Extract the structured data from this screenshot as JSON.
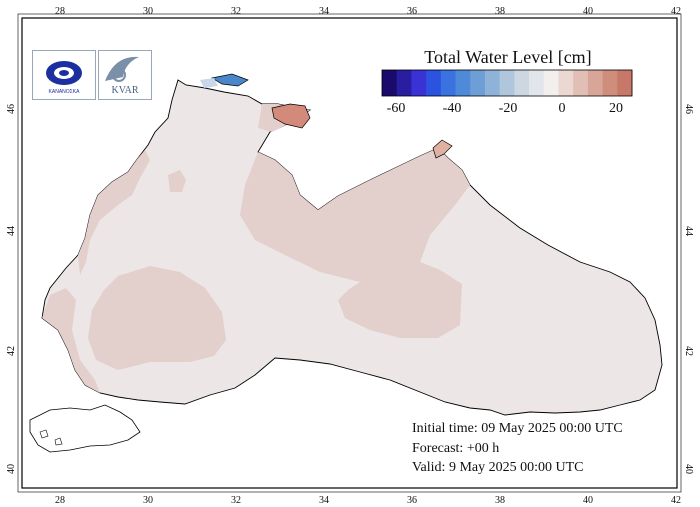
{
  "legend": {
    "title": "Total Water Level [cm]",
    "ticks": [
      "-60",
      "-40",
      "-20",
      "0",
      "20"
    ],
    "colors": [
      "#1a0a6b",
      "#2a1ea0",
      "#3a32d4",
      "#2c52e0",
      "#3a72e0",
      "#4f8ad8",
      "#6d9ed6",
      "#8fb3d8",
      "#b0c6dc",
      "#ccd7e2",
      "#e2e6ea",
      "#f2efee",
      "#ecd8d2",
      "#e2bfb5",
      "#d8a698",
      "#cf8e7c",
      "#c87868"
    ]
  },
  "info": {
    "initial": "Initial time: 09 May 2025 00:00 UTC",
    "forecast": "Forecast: +00 h",
    "valid": "Valid:  9 May 2025 00:00 UTC"
  },
  "axes": {
    "lon_labels": [
      "28",
      "30",
      "32",
      "34",
      "36",
      "38",
      "40",
      "42"
    ],
    "lat_labels": [
      "40",
      "42",
      "44",
      "46"
    ]
  },
  "logos": {
    "left_text": "ΚΑΝΑΝΟΣΚΑ",
    "right_text": "KVAR"
  },
  "colors": {
    "sea_base": "#ece6e6",
    "positive_patch": "#e3cfcc",
    "hot_patch": "#d48a7a",
    "negative_patch": "#4a86c8"
  }
}
